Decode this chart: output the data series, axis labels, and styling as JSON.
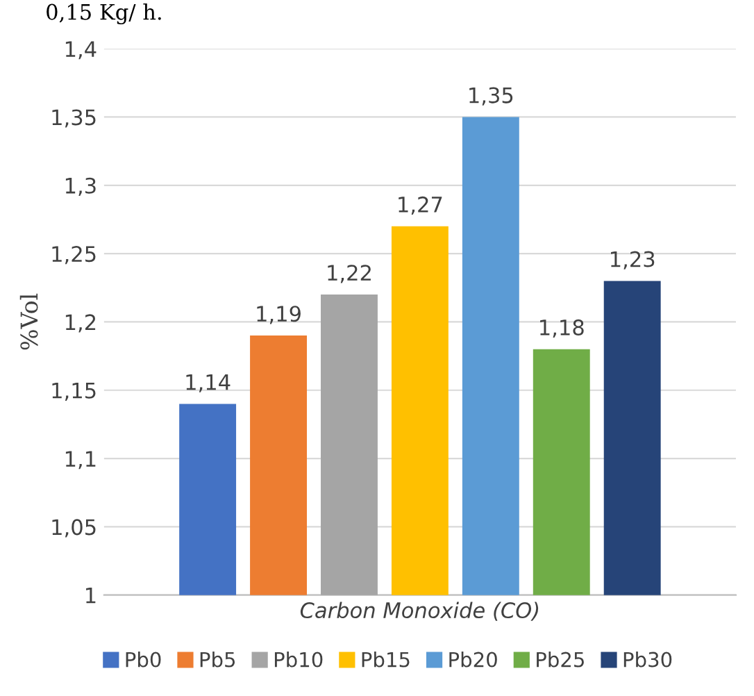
{
  "chart_data": {
    "type": "bar",
    "ylabel": "%Vol",
    "categories": [
      "Carbon Monoxide (CO)"
    ],
    "series": [
      {
        "name": "Pb0",
        "color": "#4472c4",
        "values": [
          1.14
        ],
        "value_labels": [
          "1,14"
        ]
      },
      {
        "name": "Pb5",
        "color": "#ed7d31",
        "values": [
          1.19
        ],
        "value_labels": [
          "1,19"
        ]
      },
      {
        "name": "Pb10",
        "color": "#a5a5a5",
        "values": [
          1.22
        ],
        "value_labels": [
          "1,22"
        ]
      },
      {
        "name": "Pb15",
        "color": "#ffc000",
        "values": [
          1.27
        ],
        "value_labels": [
          "1,27"
        ]
      },
      {
        "name": "Pb20",
        "color": "#5b9bd5",
        "values": [
          1.35
        ],
        "value_labels": [
          "1,35"
        ]
      },
      {
        "name": "Pb25",
        "color": "#70ad47",
        "values": [
          1.18
        ],
        "value_labels": [
          "1,18"
        ]
      },
      {
        "name": "Pb30",
        "color": "#264478",
        "values": [
          1.23
        ],
        "value_labels": [
          "1,23"
        ]
      }
    ],
    "ylim": [
      1,
      1.4
    ],
    "yticks": [
      1,
      {
        "value": 1.05,
        "label": "1,05"
      },
      {
        "value": 1.1,
        "label": "1,1"
      },
      {
        "value": 1.15,
        "label": "1,15"
      },
      {
        "value": 1.2,
        "label": "1,2"
      },
      {
        "value": 1.25,
        "label": "1,25"
      },
      {
        "value": 1.3,
        "label": "1,3"
      },
      {
        "value": 1.35,
        "label": "1,35"
      },
      {
        "value": 1.4,
        "label": "1,4"
      }
    ],
    "grid": "y",
    "legend": "bottom",
    "annotations": [
      "0,15 Kg/ h."
    ]
  }
}
